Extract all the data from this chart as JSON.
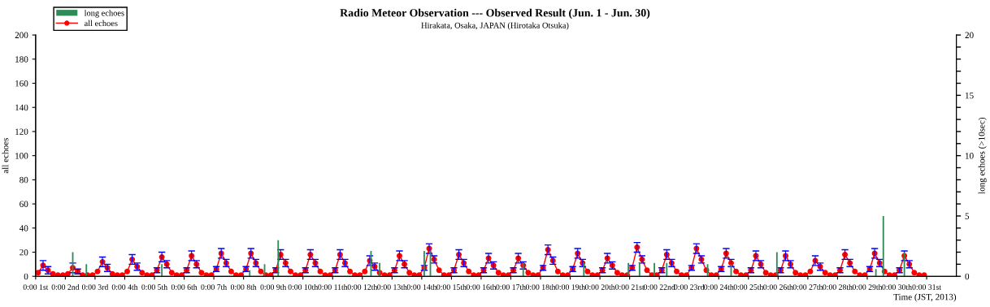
{
  "chart_data": {
    "type": "line",
    "title": "Radio Meteor Observation --- Observed Result (Jun. 1 - Jun. 30)",
    "subtitle": "Hirakata, Osaka, JAPAN (Hirotaka Otsuka)",
    "xlabel": "Time (JST, 2013)",
    "ylabel": "all echoes",
    "y2label": "long echoes (>10sec)",
    "xlim": [
      "2013-06-01",
      "2013-07-02"
    ],
    "xticks": [
      {
        "value": "2013-06-01",
        "label": "0:00 1st"
      },
      {
        "value": "2013-06-02",
        "label": "0:00 2nd"
      },
      {
        "value": "2013-06-03",
        "label": "0:00 3rd"
      },
      {
        "value": "2013-06-04",
        "label": "0:00 4th"
      },
      {
        "value": "2013-06-05",
        "label": "0:00 5th"
      },
      {
        "value": "2013-06-06",
        "label": "0:00 6th"
      },
      {
        "value": "2013-06-07",
        "label": "0:00 7th"
      },
      {
        "value": "2013-06-08",
        "label": "0:00 8th"
      },
      {
        "value": "2013-06-09",
        "label": "0:00 9th"
      },
      {
        "value": "2013-06-10",
        "label": "0:00 10th"
      },
      {
        "value": "2013-06-11",
        "label": "0:00 11th"
      },
      {
        "value": "2013-06-12",
        "label": "0:00 12th"
      },
      {
        "value": "2013-06-13",
        "label": "0:00 13th"
      },
      {
        "value": "2013-06-14",
        "label": "0:00 14th"
      },
      {
        "value": "2013-06-15",
        "label": "0:00 15th"
      },
      {
        "value": "2013-06-16",
        "label": "0:00 16th"
      },
      {
        "value": "2013-06-17",
        "label": "0:00 17th"
      },
      {
        "value": "2013-06-18",
        "label": "0:00 18th"
      },
      {
        "value": "2013-06-19",
        "label": "0:00 19th"
      },
      {
        "value": "2013-06-20",
        "label": "0:00 20th"
      },
      {
        "value": "2013-06-21",
        "label": "0:00 21st"
      },
      {
        "value": "2013-06-22",
        "label": "0:00 22nd"
      },
      {
        "value": "2013-06-23",
        "label": "0:00 23rd"
      },
      {
        "value": "2013-06-24",
        "label": "0:00 24th"
      },
      {
        "value": "2013-06-25",
        "label": "0:00 25th"
      },
      {
        "value": "2013-06-26",
        "label": "0:00 26th"
      },
      {
        "value": "2013-06-27",
        "label": "0:00 27th"
      },
      {
        "value": "2013-06-28",
        "label": "0:00 28th"
      },
      {
        "value": "2013-06-29",
        "label": "0:00 29th"
      },
      {
        "value": "2013-06-30",
        "label": "0:00 30th"
      },
      {
        "value": "2013-07-01",
        "label": "0:00 31st"
      }
    ],
    "ylim": [
      0,
      200
    ],
    "yticks": [
      0,
      20,
      40,
      60,
      80,
      100,
      120,
      140,
      160,
      180,
      200
    ],
    "y2lim": [
      0,
      20
    ],
    "y2ticks": [
      0,
      {
        "value": 1,
        "label": null
      },
      {
        "value": 2,
        "label": null
      },
      {
        "value": 3,
        "label": null
      },
      {
        "value": 4,
        "label": null
      },
      5,
      {
        "value": 6,
        "label": null
      },
      {
        "value": 7,
        "label": null
      },
      {
        "value": 8,
        "label": null
      },
      {
        "value": 9,
        "label": null
      },
      10,
      {
        "value": 11,
        "label": null
      },
      {
        "value": 12,
        "label": null
      },
      {
        "value": 13,
        "label": null
      },
      {
        "value": 14,
        "label": null
      },
      15,
      {
        "value": 16,
        "label": null
      },
      {
        "value": 17,
        "label": null
      },
      {
        "value": 18,
        "label": null
      },
      {
        "value": 19,
        "label": null
      },
      20
    ],
    "grid": false,
    "legend": "top left",
    "marker": "circle",
    "line_style": "solid",
    "series": [
      {
        "name": "long echoes",
        "type": "bar",
        "axis": "y2",
        "color": "#2e8b57",
        "x": [
          "2013-06-02T06:00",
          "2013-06-02T17:00",
          "2013-06-05T06:00",
          "2013-06-08T05:00",
          "2013-06-08T17:00",
          "2013-06-09T04:00",
          "2013-06-12T07:00",
          "2013-06-12T14:00",
          "2013-06-14T02:00",
          "2013-06-14T07:00",
          "2013-06-17T10:00",
          "2013-06-19T11:00",
          "2013-06-20T23:00",
          "2013-06-21T08:00",
          "2013-06-21T20:00",
          "2013-06-22T06:00",
          "2013-06-23T15:00",
          "2013-06-24T10:00",
          "2013-06-25T23:00",
          "2013-06-29T07:00",
          "2013-06-29T13:00",
          "2013-06-30T06:00"
        ],
        "values": [
          2.0,
          1.0,
          1.0,
          0.5,
          1.0,
          3.0,
          2.1,
          1.1,
          2.1,
          2.1,
          1.1,
          1.1,
          1.1,
          1.1,
          1.1,
          1.1,
          1.0,
          1.0,
          2.0,
          0.6,
          5.0,
          2.0
        ]
      },
      {
        "name": "all echoes",
        "color": "#ff0000",
        "x": [
          "2013-06-01T02:00",
          "2013-06-01T06:00",
          "2013-06-01T10:00",
          "2013-06-01T14:00",
          "2013-06-01T18:00",
          "2013-06-01T22:00",
          "2013-06-02T02:00",
          "2013-06-02T06:00",
          "2013-06-02T10:00",
          "2013-06-02T14:00",
          "2013-06-02T18:00",
          "2013-06-02T22:00",
          "2013-06-03T02:00",
          "2013-06-03T06:00",
          "2013-06-03T10:00",
          "2013-06-03T14:00",
          "2013-06-03T18:00",
          "2013-06-03T22:00",
          "2013-06-04T02:00",
          "2013-06-04T06:00",
          "2013-06-04T10:00",
          "2013-06-04T14:00",
          "2013-06-04T18:00",
          "2013-06-04T22:00",
          "2013-06-05T02:00",
          "2013-06-05T06:00",
          "2013-06-05T10:00",
          "2013-06-05T14:00",
          "2013-06-05T18:00",
          "2013-06-05T22:00",
          "2013-06-06T02:00",
          "2013-06-06T06:00",
          "2013-06-06T10:00",
          "2013-06-06T14:00",
          "2013-06-06T18:00",
          "2013-06-06T22:00",
          "2013-06-07T02:00",
          "2013-06-07T06:00",
          "2013-06-07T10:00",
          "2013-06-07T14:00",
          "2013-06-07T18:00",
          "2013-06-07T22:00",
          "2013-06-08T02:00",
          "2013-06-08T06:00",
          "2013-06-08T10:00",
          "2013-06-08T14:00",
          "2013-06-08T18:00",
          "2013-06-08T22:00",
          "2013-06-09T02:00",
          "2013-06-09T06:00",
          "2013-06-09T10:00",
          "2013-06-09T14:00",
          "2013-06-09T18:00",
          "2013-06-09T22:00",
          "2013-06-10T02:00",
          "2013-06-10T06:00",
          "2013-06-10T10:00",
          "2013-06-10T14:00",
          "2013-06-10T18:00",
          "2013-06-10T22:00",
          "2013-06-11T02:00",
          "2013-06-11T06:00",
          "2013-06-11T10:00",
          "2013-06-11T14:00",
          "2013-06-11T18:00",
          "2013-06-11T22:00",
          "2013-06-12T02:00",
          "2013-06-12T06:00",
          "2013-06-12T10:00",
          "2013-06-12T14:00",
          "2013-06-12T18:00",
          "2013-06-12T22:00",
          "2013-06-13T02:00",
          "2013-06-13T06:00",
          "2013-06-13T10:00",
          "2013-06-13T14:00",
          "2013-06-13T18:00",
          "2013-06-13T22:00",
          "2013-06-14T02:00",
          "2013-06-14T06:00",
          "2013-06-14T10:00",
          "2013-06-14T14:00",
          "2013-06-14T18:00",
          "2013-06-14T22:00",
          "2013-06-15T02:00",
          "2013-06-15T06:00",
          "2013-06-15T10:00",
          "2013-06-15T14:00",
          "2013-06-15T18:00",
          "2013-06-15T22:00",
          "2013-06-16T02:00",
          "2013-06-16T06:00",
          "2013-06-16T10:00",
          "2013-06-16T14:00",
          "2013-06-16T18:00",
          "2013-06-16T22:00",
          "2013-06-17T02:00",
          "2013-06-17T06:00",
          "2013-06-17T10:00",
          "2013-06-17T14:00",
          "2013-06-17T18:00",
          "2013-06-17T22:00",
          "2013-06-18T02:00",
          "2013-06-18T06:00",
          "2013-06-18T10:00",
          "2013-06-18T14:00",
          "2013-06-18T18:00",
          "2013-06-18T22:00",
          "2013-06-19T02:00",
          "2013-06-19T06:00",
          "2013-06-19T10:00",
          "2013-06-19T14:00",
          "2013-06-19T18:00",
          "2013-06-19T22:00",
          "2013-06-20T02:00",
          "2013-06-20T06:00",
          "2013-06-20T10:00",
          "2013-06-20T14:00",
          "2013-06-20T18:00",
          "2013-06-20T22:00",
          "2013-06-21T02:00",
          "2013-06-21T06:00",
          "2013-06-21T10:00",
          "2013-06-21T14:00",
          "2013-06-21T18:00",
          "2013-06-21T22:00",
          "2013-06-22T02:00",
          "2013-06-22T06:00",
          "2013-06-22T10:00",
          "2013-06-22T14:00",
          "2013-06-22T18:00",
          "2013-06-22T22:00",
          "2013-06-23T02:00",
          "2013-06-23T06:00",
          "2013-06-23T10:00",
          "2013-06-23T14:00",
          "2013-06-23T18:00",
          "2013-06-23T22:00",
          "2013-06-24T02:00",
          "2013-06-24T06:00",
          "2013-06-24T10:00",
          "2013-06-24T14:00",
          "2013-06-24T18:00",
          "2013-06-24T22:00",
          "2013-06-25T02:00",
          "2013-06-25T06:00",
          "2013-06-25T10:00",
          "2013-06-25T14:00",
          "2013-06-25T18:00",
          "2013-06-25T22:00",
          "2013-06-26T02:00",
          "2013-06-26T06:00",
          "2013-06-26T10:00",
          "2013-06-26T14:00",
          "2013-06-26T18:00",
          "2013-06-26T22:00",
          "2013-06-27T02:00",
          "2013-06-27T06:00",
          "2013-06-27T10:00",
          "2013-06-27T14:00",
          "2013-06-27T18:00",
          "2013-06-27T22:00",
          "2013-06-28T02:00",
          "2013-06-28T06:00",
          "2013-06-28T10:00",
          "2013-06-28T14:00",
          "2013-06-28T18:00",
          "2013-06-28T22:00",
          "2013-06-29T02:00",
          "2013-06-29T06:00",
          "2013-06-29T10:00",
          "2013-06-29T14:00",
          "2013-06-29T18:00",
          "2013-06-29T22:00",
          "2013-06-30T02:00",
          "2013-06-30T06:00",
          "2013-06-30T10:00",
          "2013-06-30T14:00",
          "2013-06-30T18:00",
          "2013-06-30T22:00"
        ],
        "values": [
          3,
          9,
          5,
          2,
          1,
          1,
          2,
          7,
          4,
          1,
          1,
          1,
          4,
          12,
          7,
          2,
          1,
          1,
          4,
          14,
          8,
          3,
          1,
          1,
          5,
          16,
          10,
          3,
          1,
          1,
          5,
          17,
          10,
          3,
          1,
          1,
          6,
          19,
          11,
          4,
          1,
          1,
          6,
          19,
          11,
          4,
          1,
          1,
          5,
          18,
          11,
          4,
          1,
          1,
          5,
          18,
          11,
          4,
          1,
          1,
          5,
          18,
          11,
          4,
          1,
          1,
          4,
          13,
          8,
          3,
          1,
          1,
          5,
          17,
          10,
          3,
          1,
          1,
          7,
          23,
          14,
          5,
          1,
          1,
          5,
          18,
          11,
          4,
          1,
          1,
          5,
          15,
          9,
          3,
          1,
          1,
          5,
          15,
          9,
          3,
          1,
          1,
          7,
          22,
          13,
          4,
          1,
          1,
          6,
          19,
          11,
          4,
          1,
          1,
          5,
          15,
          9,
          3,
          1,
          1,
          7,
          24,
          14,
          5,
          1,
          1,
          5,
          18,
          11,
          4,
          1,
          1,
          7,
          23,
          14,
          5,
          1,
          1,
          6,
          19,
          11,
          4,
          1,
          1,
          5,
          17,
          10,
          3,
          1,
          1,
          5,
          17,
          10,
          3,
          1,
          1,
          4,
          13,
          8,
          3,
          1,
          1,
          5,
          18,
          11,
          4,
          1,
          1,
          6,
          19,
          11,
          4,
          1,
          1,
          5,
          17,
          10,
          3,
          1,
          1
        ],
        "errors": [
          null,
          4,
          3,
          null,
          null,
          null,
          null,
          4,
          2,
          null,
          null,
          null,
          null,
          4,
          3,
          null,
          null,
          null,
          null,
          4,
          3,
          null,
          null,
          null,
          2,
          4,
          3,
          null,
          null,
          null,
          2,
          4,
          3,
          null,
          null,
          null,
          2,
          4,
          3,
          null,
          null,
          null,
          2,
          4,
          3,
          null,
          null,
          null,
          2,
          4,
          3,
          null,
          null,
          null,
          2,
          4,
          3,
          null,
          null,
          null,
          2,
          4,
          3,
          null,
          null,
          null,
          null,
          4,
          3,
          null,
          null,
          null,
          2,
          4,
          3,
          null,
          null,
          null,
          2,
          4,
          3,
          null,
          null,
          null,
          2,
          4,
          3,
          null,
          null,
          null,
          2,
          4,
          3,
          null,
          null,
          null,
          2,
          4,
          3,
          null,
          null,
          null,
          2,
          4,
          3,
          null,
          null,
          null,
          2,
          4,
          3,
          null,
          null,
          null,
          2,
          4,
          3,
          null,
          null,
          null,
          2,
          4,
          3,
          null,
          null,
          null,
          2,
          4,
          3,
          null,
          null,
          null,
          2,
          4,
          3,
          null,
          null,
          null,
          2,
          4,
          3,
          null,
          null,
          null,
          2,
          4,
          3,
          null,
          null,
          null,
          2,
          4,
          3,
          null,
          null,
          null,
          null,
          4,
          3,
          null,
          null,
          null,
          2,
          4,
          3,
          null,
          null,
          null,
          2,
          4,
          3,
          null,
          null,
          null,
          2,
          4,
          3,
          null,
          null,
          null
        ]
      }
    ]
  }
}
